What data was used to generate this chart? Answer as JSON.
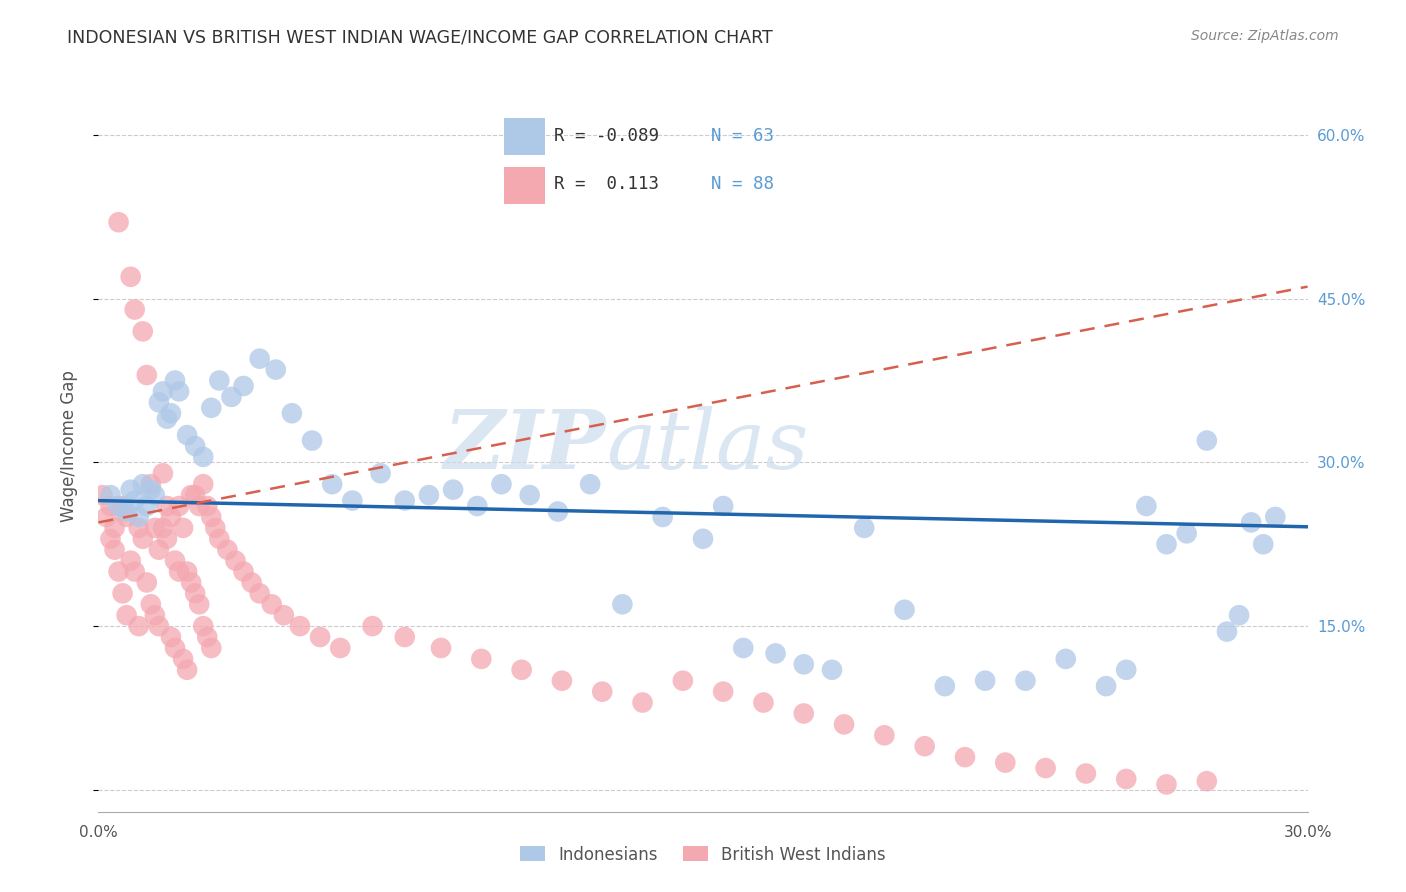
{
  "title": "INDONESIAN VS BRITISH WEST INDIAN WAGE/INCOME GAP CORRELATION CHART",
  "source": "Source: ZipAtlas.com",
  "ylabel": "Wage/Income Gap",
  "xlim": [
    0.0,
    0.3
  ],
  "ylim": [
    -0.02,
    0.65
  ],
  "blue_color": "#aec8e8",
  "pink_color": "#f4a8b0",
  "blue_line_color": "#2166ac",
  "pink_line_color": "#d6604d",
  "grid_color": "#cccccc",
  "watermark_zip": "ZIP",
  "watermark_atlas": "atlas",
  "title_color": "#333333",
  "source_color": "#888888",
  "axis_label_color": "#555555",
  "tick_color": "#5b9bd5",
  "blue_r": -0.089,
  "blue_n": 63,
  "pink_r": 0.113,
  "pink_n": 88,
  "blue_x": [
    0.003,
    0.005,
    0.007,
    0.008,
    0.009,
    0.01,
    0.011,
    0.012,
    0.013,
    0.014,
    0.015,
    0.016,
    0.017,
    0.018,
    0.019,
    0.02,
    0.022,
    0.024,
    0.026,
    0.028,
    0.03,
    0.033,
    0.036,
    0.04,
    0.044,
    0.048,
    0.053,
    0.058,
    0.063,
    0.07,
    0.076,
    0.082,
    0.088,
    0.094,
    0.1,
    0.107,
    0.114,
    0.122,
    0.13,
    0.14,
    0.15,
    0.155,
    0.16,
    0.168,
    0.175,
    0.182,
    0.19,
    0.2,
    0.21,
    0.22,
    0.23,
    0.24,
    0.25,
    0.255,
    0.26,
    0.265,
    0.27,
    0.275,
    0.28,
    0.283,
    0.286,
    0.289,
    0.292
  ],
  "blue_y": [
    0.27,
    0.26,
    0.255,
    0.275,
    0.265,
    0.25,
    0.28,
    0.26,
    0.275,
    0.27,
    0.355,
    0.365,
    0.34,
    0.345,
    0.375,
    0.365,
    0.325,
    0.315,
    0.305,
    0.35,
    0.375,
    0.36,
    0.37,
    0.395,
    0.385,
    0.345,
    0.32,
    0.28,
    0.265,
    0.29,
    0.265,
    0.27,
    0.275,
    0.26,
    0.28,
    0.27,
    0.255,
    0.28,
    0.17,
    0.25,
    0.23,
    0.26,
    0.13,
    0.125,
    0.115,
    0.11,
    0.24,
    0.165,
    0.095,
    0.1,
    0.1,
    0.12,
    0.095,
    0.11,
    0.26,
    0.225,
    0.235,
    0.32,
    0.145,
    0.16,
    0.245,
    0.225,
    0.25
  ],
  "pink_x": [
    0.001,
    0.002,
    0.003,
    0.003,
    0.004,
    0.004,
    0.005,
    0.005,
    0.006,
    0.006,
    0.007,
    0.007,
    0.008,
    0.008,
    0.009,
    0.009,
    0.01,
    0.01,
    0.011,
    0.011,
    0.012,
    0.012,
    0.013,
    0.013,
    0.014,
    0.014,
    0.015,
    0.015,
    0.016,
    0.016,
    0.017,
    0.017,
    0.018,
    0.018,
    0.019,
    0.019,
    0.02,
    0.02,
    0.021,
    0.021,
    0.022,
    0.022,
    0.023,
    0.023,
    0.024,
    0.024,
    0.025,
    0.025,
    0.026,
    0.026,
    0.027,
    0.027,
    0.028,
    0.028,
    0.029,
    0.03,
    0.032,
    0.034,
    0.036,
    0.038,
    0.04,
    0.043,
    0.046,
    0.05,
    0.055,
    0.06,
    0.068,
    0.076,
    0.085,
    0.095,
    0.105,
    0.115,
    0.125,
    0.135,
    0.145,
    0.155,
    0.165,
    0.175,
    0.185,
    0.195,
    0.205,
    0.215,
    0.225,
    0.235,
    0.245,
    0.255,
    0.265,
    0.275
  ],
  "pink_y": [
    0.27,
    0.25,
    0.26,
    0.23,
    0.24,
    0.22,
    0.52,
    0.2,
    0.26,
    0.18,
    0.25,
    0.16,
    0.21,
    0.47,
    0.2,
    0.44,
    0.24,
    0.15,
    0.23,
    0.42,
    0.19,
    0.38,
    0.28,
    0.17,
    0.24,
    0.16,
    0.22,
    0.15,
    0.24,
    0.29,
    0.23,
    0.26,
    0.25,
    0.14,
    0.21,
    0.13,
    0.2,
    0.26,
    0.24,
    0.12,
    0.2,
    0.11,
    0.19,
    0.27,
    0.18,
    0.27,
    0.17,
    0.26,
    0.28,
    0.15,
    0.26,
    0.14,
    0.25,
    0.13,
    0.24,
    0.23,
    0.22,
    0.21,
    0.2,
    0.19,
    0.18,
    0.17,
    0.16,
    0.15,
    0.14,
    0.13,
    0.15,
    0.14,
    0.13,
    0.12,
    0.11,
    0.1,
    0.09,
    0.08,
    0.1,
    0.09,
    0.08,
    0.07,
    0.06,
    0.05,
    0.04,
    0.03,
    0.025,
    0.02,
    0.015,
    0.01,
    0.005,
    0.008
  ]
}
